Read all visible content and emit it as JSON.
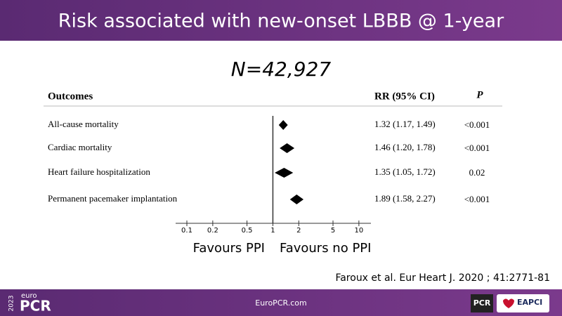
{
  "header": {
    "title": "Risk associated with new-onset LBBB @ 1-year"
  },
  "chart_data": {
    "type": "forest",
    "subtitle": "N=42,927",
    "column_headers": [
      "Outcomes",
      "RR (95% CI)",
      "P"
    ],
    "categories": [
      "All-cause mortality",
      "Cardiac mortality",
      "Heart failure hospitalization",
      "Permanent pacemaker implantation"
    ],
    "values": [
      1.32,
      1.46,
      1.35,
      1.89
    ],
    "lower": [
      1.17,
      1.2,
      1.05,
      1.58
    ],
    "upper": [
      1.49,
      1.78,
      1.72,
      2.27
    ],
    "value_labels": [
      "1.32 (1.17, 1.49)",
      "1.46 (1.20, 1.78)",
      "1.35 (1.05, 1.72)",
      "1.89 (1.58, 2.27)"
    ],
    "p_labels": [
      "<0.001",
      "<0.001",
      "0.02",
      "<0.001"
    ],
    "x_scale": "log",
    "xlim": [
      0.074,
      13.8
    ],
    "xticks": [
      0.1,
      0.2,
      0.5,
      1,
      2,
      5,
      10
    ],
    "reference": 1,
    "color": "#000000",
    "left_label": "Favours PPI",
    "right_label": "Favours no PPI",
    "citation": "Faroux et al. Eur Heart J. 2020 ; 41:2771-81"
  },
  "footer": {
    "url": "EuroPCR.com",
    "year": "2023",
    "brand_small": "euro",
    "brand": "PCR",
    "logo1": "PCR",
    "logo2": "EAPCI"
  }
}
